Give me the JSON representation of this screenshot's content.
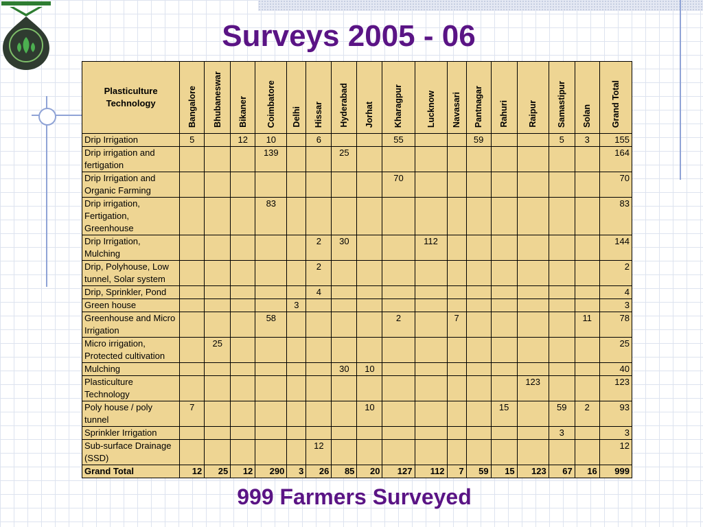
{
  "title": "Surveys 2005 - 06",
  "footer": "999 Farmers Surveyed",
  "table": {
    "corner_header": "Plasticulture Technology",
    "columns": [
      "Bangalore",
      "Bhubaneswar",
      "Bikaner",
      "Coimbatore",
      "Delhi",
      "Hissar",
      "Hyderabad",
      "Jorhat",
      "Kharagpur",
      "Lucknow",
      "Navasari",
      "Pantnagar",
      "Rahuri",
      "Raipur",
      "Samastipur",
      "Solan",
      "Grand Total"
    ],
    "rows": [
      {
        "label": "Drip Irrigation",
        "cells": [
          "5",
          "",
          "12",
          "10",
          "",
          "6",
          "",
          "",
          "55",
          "",
          "",
          "59",
          "",
          "",
          "5",
          "3",
          "155"
        ]
      },
      {
        "label": "Drip irrigation and fertigation",
        "cells": [
          "",
          "",
          "",
          "139",
          "",
          "",
          "25",
          "",
          "",
          "",
          "",
          "",
          "",
          "",
          "",
          "",
          "164"
        ]
      },
      {
        "label": "Drip Irrigation and Organic Farming",
        "cells": [
          "",
          "",
          "",
          "",
          "",
          "",
          "",
          "",
          "70",
          "",
          "",
          "",
          "",
          "",
          "",
          "",
          "70"
        ]
      },
      {
        "label": "Drip irrigation, Fertigation, Greenhouse",
        "cells": [
          "",
          "",
          "",
          "83",
          "",
          "",
          "",
          "",
          "",
          "",
          "",
          "",
          "",
          "",
          "",
          "",
          "83"
        ]
      },
      {
        "label": "Drip Irrigation, Mulching",
        "cells": [
          "",
          "",
          "",
          "",
          "",
          "2",
          "30",
          "",
          "",
          "112",
          "",
          "",
          "",
          "",
          "",
          "",
          "144"
        ]
      },
      {
        "label": "Drip, Polyhouse, Low tunnel, Solar system",
        "cells": [
          "",
          "",
          "",
          "",
          "",
          "2",
          "",
          "",
          "",
          "",
          "",
          "",
          "",
          "",
          "",
          "",
          "2"
        ]
      },
      {
        "label": "Drip, Sprinkler, Pond",
        "cells": [
          "",
          "",
          "",
          "",
          "",
          "4",
          "",
          "",
          "",
          "",
          "",
          "",
          "",
          "",
          "",
          "",
          "4"
        ]
      },
      {
        "label": "Green house",
        "cells": [
          "",
          "",
          "",
          "",
          "3",
          "",
          "",
          "",
          "",
          "",
          "",
          "",
          "",
          "",
          "",
          "",
          "3"
        ]
      },
      {
        "label": "Greenhouse and Micro Irrigation",
        "cells": [
          "",
          "",
          "",
          "58",
          "",
          "",
          "",
          "",
          "2",
          "",
          "7",
          "",
          "",
          "",
          "",
          "11",
          "78"
        ]
      },
      {
        "label": "Micro irrigation, Protected cultivation",
        "cells": [
          "",
          "25",
          "",
          "",
          "",
          "",
          "",
          "",
          "",
          "",
          "",
          "",
          "",
          "",
          "",
          "",
          "25"
        ]
      },
      {
        "label": "Mulching",
        "cells": [
          "",
          "",
          "",
          "",
          "",
          "",
          "30",
          "10",
          "",
          "",
          "",
          "",
          "",
          "",
          "",
          "",
          "40"
        ]
      },
      {
        "label": "Plasticulture Technology",
        "cells": [
          "",
          "",
          "",
          "",
          "",
          "",
          "",
          "",
          "",
          "",
          "",
          "",
          "",
          "123",
          "",
          "",
          "123"
        ]
      },
      {
        "label": "Poly house / poly tunnel",
        "cells": [
          "7",
          "",
          "",
          "",
          "",
          "",
          "",
          "10",
          "",
          "",
          "",
          "",
          "15",
          "",
          "59",
          "2",
          "93"
        ]
      },
      {
        "label": "Sprinkler Irrigation",
        "cells": [
          "",
          "",
          "",
          "",
          "",
          "",
          "",
          "",
          "",
          "",
          "",
          "",
          "",
          "",
          "3",
          "",
          "3"
        ]
      },
      {
        "label": "Sub-surface Drainage (SSD)",
        "cells": [
          "",
          "",
          "",
          "",
          "",
          "12",
          "",
          "",
          "",
          "",
          "",
          "",
          "",
          "",
          "",
          "",
          "12"
        ]
      }
    ],
    "total": {
      "label": "Grand Total",
      "cells": [
        "12",
        "25",
        "12",
        "290",
        "3",
        "26",
        "85",
        "20",
        "127",
        "112",
        "7",
        "59",
        "15",
        "123",
        "67",
        "16",
        "999"
      ]
    }
  }
}
